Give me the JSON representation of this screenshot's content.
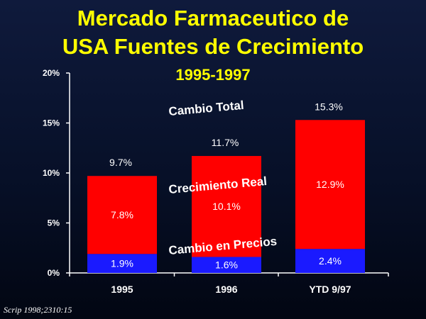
{
  "title_lines": [
    "Mercado Farmaceutico de",
    "USA Fuentes de Crecimiento"
  ],
  "footnote": "Scrip 1998;2310:15",
  "chart_data": {
    "type": "bar",
    "stacked": true,
    "subtitle": "1995-1997",
    "categories": [
      "1995",
      "1996",
      "YTD 9/97"
    ],
    "series": [
      {
        "name": "Cambio en Precios",
        "values": [
          1.9,
          1.6,
          2.4
        ],
        "labels": [
          "1.9%",
          "1.6%",
          "2.4%"
        ],
        "color": "#1a1aff"
      },
      {
        "name": "Crecimiento Real",
        "values": [
          7.8,
          10.1,
          12.9
        ],
        "labels": [
          "7.8%",
          "10.1%",
          "12.9%"
        ],
        "color": "#ff0000"
      }
    ],
    "totals": {
      "name": "Cambio Total",
      "values": [
        9.7,
        11.7,
        15.3
      ],
      "labels": [
        "9.7%",
        "11.7%",
        "15.3%"
      ]
    },
    "ylim": [
      0,
      20
    ],
    "yticks": [
      0,
      5,
      10,
      15,
      20
    ],
    "ytick_labels": [
      "0%",
      "5%",
      "10%",
      "15%",
      "20%"
    ],
    "grid": false,
    "colors": {
      "title": "#ffff00",
      "axis": "#ffffff",
      "text": "#ffffff"
    }
  }
}
